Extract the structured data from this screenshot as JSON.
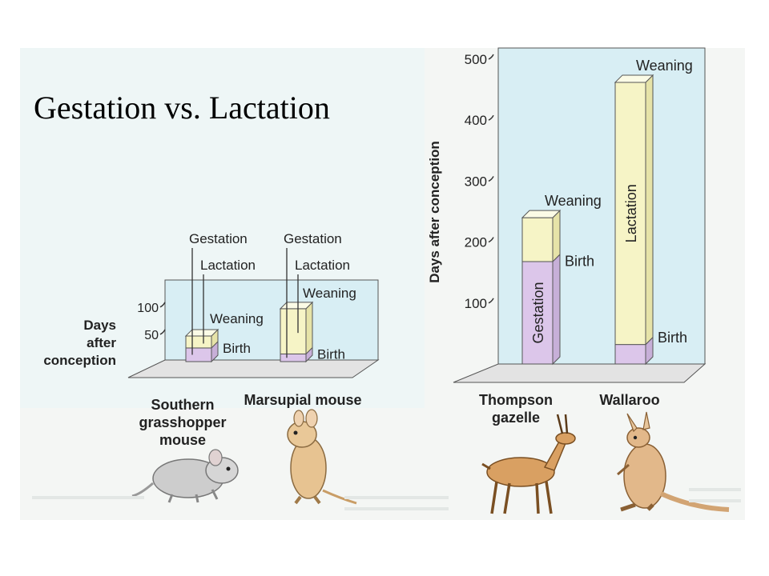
{
  "slide": {
    "title": "Gestation vs. Lactation"
  },
  "colors": {
    "panel_bg": "#d8eef4",
    "floor": "#e3e3e3",
    "gestation": "#dcc6ea",
    "lactation": "#f6f4c6",
    "bar_top": "#fbfbe6",
    "axis_line": "#333333",
    "gazelle": "#d9a062",
    "wallaroo": "#e2b88a",
    "grasshopper_mouse": "#cdcdcd",
    "marsupial_mouse": "#e7c391"
  },
  "icons": {
    "grasshopper_mouse": "mouse-illustration",
    "marsupial_mouse": "marsupial-mouse-illustration",
    "gazelle": "gazelle-illustration",
    "wallaroo": "wallaroo-illustration"
  },
  "chart_data": [
    {
      "type": "bar",
      "stacked": true,
      "ylabel": "Days after conception",
      "yticks": [
        50,
        100
      ],
      "ylim": [
        0,
        110
      ],
      "categories": [
        "Southern grasshopper mouse",
        "Marsupial mouse"
      ],
      "series": [
        {
          "name": "Gestation",
          "values": [
            25,
            14
          ]
        },
        {
          "name": "Lactation",
          "values": [
            22,
            83
          ]
        }
      ],
      "annotations": {
        "gestation": "Gestation",
        "lactation": "Lactation",
        "weaning": "Weaning",
        "birth": "Birth"
      },
      "labels": [
        {
          "gestation": "Gestation",
          "lactation": "Lactation",
          "weaning": "Weaning",
          "birth": "Birth"
        },
        {
          "gestation": "Gestation",
          "lactation": "Lactation",
          "weaning": "Weaning",
          "birth": "Birth"
        }
      ],
      "category_lines": [
        [
          "Southern",
          "grasshopper",
          "mouse"
        ],
        [
          "Marsupial mouse"
        ]
      ],
      "ylabel_lines": [
        "Days",
        "after",
        "conception"
      ]
    },
    {
      "type": "bar",
      "stacked": true,
      "ylabel": "Days after conception",
      "yticks": [
        100,
        200,
        300,
        400,
        500
      ],
      "ylim": [
        0,
        500
      ],
      "categories": [
        "Thompson gazelle",
        "Wallaroo"
      ],
      "series": [
        {
          "name": "Gestation",
          "values": [
            168,
            32
          ]
        },
        {
          "name": "Lactation",
          "values": [
            72,
            430
          ]
        }
      ],
      "labels": [
        {
          "weaning": "Weaning",
          "birth": "Birth",
          "gestation": "Gestation"
        },
        {
          "weaning": "Weaning",
          "birth": "Birth",
          "lactation": "Lactation"
        }
      ],
      "category_lines": [
        [
          "Thompson",
          "gazelle"
        ],
        [
          "Wallaroo"
        ]
      ]
    }
  ]
}
